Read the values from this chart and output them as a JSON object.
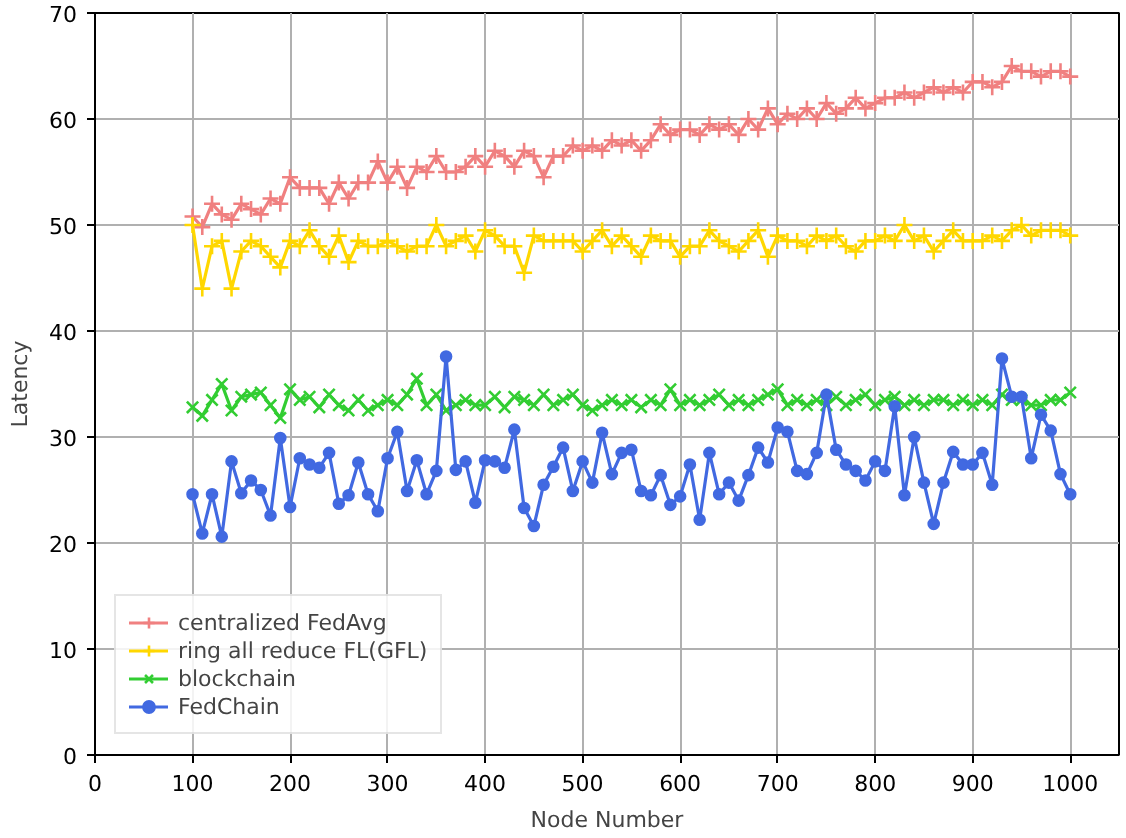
{
  "chart_data": {
    "type": "line",
    "xlabel": "Node Number",
    "ylabel": "Latency",
    "x": [
      100,
      110,
      120,
      130,
      140,
      150,
      160,
      170,
      180,
      190,
      200,
      210,
      220,
      230,
      240,
      250,
      260,
      270,
      280,
      290,
      300,
      310,
      320,
      330,
      340,
      350,
      360,
      370,
      380,
      390,
      400,
      410,
      420,
      430,
      440,
      450,
      460,
      470,
      480,
      490,
      500,
      510,
      520,
      530,
      540,
      550,
      560,
      570,
      580,
      590,
      600,
      610,
      620,
      630,
      640,
      650,
      660,
      670,
      680,
      690,
      700,
      710,
      720,
      730,
      740,
      750,
      760,
      770,
      780,
      790,
      800,
      810,
      820,
      830,
      840,
      850,
      860,
      870,
      880,
      890,
      900,
      910,
      920,
      930,
      940,
      950,
      960,
      970,
      980,
      990,
      1000
    ],
    "xlim": [
      0,
      1050
    ],
    "ylim": [
      0,
      70
    ],
    "xticks": [
      0,
      100,
      200,
      300,
      400,
      500,
      600,
      700,
      800,
      900,
      1000
    ],
    "yticks": [
      0,
      10,
      20,
      30,
      40,
      50,
      60,
      70
    ],
    "grid": true,
    "legend": "bottom left",
    "line_style": "solid",
    "series": [
      {
        "name": "centralized FedAvg",
        "color": "#f08080",
        "marker": "cross",
        "values": [
          50.8,
          49.8,
          52.0,
          51.0,
          50.5,
          52.0,
          51.5,
          51.0,
          52.5,
          52.0,
          54.5,
          53.5,
          53.5,
          53.5,
          52.0,
          54.0,
          52.5,
          54.0,
          54.0,
          56.0,
          54.0,
          55.5,
          53.5,
          55.5,
          55.0,
          56.5,
          55.0,
          55.0,
          55.5,
          56.5,
          55.5,
          57.0,
          56.5,
          55.5,
          57.0,
          56.5,
          54.5,
          56.5,
          56.5,
          57.5,
          57.0,
          57.5,
          57.0,
          58.0,
          57.5,
          58.0,
          57.0,
          58.0,
          59.5,
          58.5,
          59.0,
          59.0,
          58.5,
          59.5,
          59.0,
          59.5,
          58.5,
          60.0,
          59.0,
          61.0,
          59.5,
          60.5,
          60.0,
          61.0,
          60.0,
          61.5,
          60.5,
          61.0,
          62.0,
          61.0,
          61.5,
          62.0,
          62.0,
          62.5,
          62.0,
          62.5,
          63.0,
          62.5,
          63.0,
          62.5,
          63.5,
          63.5,
          63.0,
          63.5,
          65.0,
          64.5,
          64.5,
          64.0,
          64.5,
          64.5,
          64.0
        ]
      },
      {
        "name": "ring all reduce FL(GFL)",
        "color": "#ffd700",
        "marker": "cross",
        "values": [
          50.0,
          44.0,
          48.0,
          48.5,
          44.0,
          47.5,
          48.5,
          48.0,
          47.0,
          46.0,
          48.5,
          48.0,
          49.5,
          48.0,
          47.0,
          49.0,
          46.5,
          48.5,
          48.0,
          48.0,
          48.5,
          48.0,
          47.5,
          48.0,
          48.0,
          50.0,
          48.0,
          48.5,
          49.0,
          47.5,
          49.5,
          49.0,
          48.0,
          48.0,
          45.5,
          49.0,
          48.5,
          48.5,
          48.5,
          48.5,
          47.5,
          48.5,
          49.5,
          48.0,
          49.0,
          48.0,
          47.0,
          49.0,
          48.5,
          48.5,
          47.0,
          48.0,
          48.0,
          49.5,
          48.5,
          48.0,
          47.5,
          48.5,
          49.5,
          47.0,
          49.0,
          48.5,
          48.5,
          48.0,
          49.0,
          48.5,
          49.0,
          48.0,
          47.5,
          48.5,
          48.5,
          49.0,
          48.5,
          50.0,
          48.5,
          49.0,
          47.5,
          48.5,
          49.5,
          48.5,
          48.5,
          48.5,
          49.0,
          48.5,
          49.5,
          50.0,
          49.0,
          49.5,
          49.5,
          49.5,
          49.0
        ]
      },
      {
        "name": "blockchain",
        "color": "#32cd32",
        "marker": "x",
        "values": [
          32.8,
          32.0,
          33.5,
          35.0,
          32.5,
          33.8,
          34.0,
          34.2,
          33.0,
          31.8,
          34.5,
          33.5,
          33.8,
          32.8,
          34.0,
          33.0,
          32.5,
          33.5,
          32.5,
          33.0,
          33.5,
          33.0,
          34.0,
          35.5,
          33.0,
          34.0,
          32.5,
          33.0,
          33.5,
          33.0,
          33.0,
          33.8,
          32.8,
          33.8,
          33.5,
          33.0,
          34.0,
          33.0,
          33.5,
          34.0,
          33.0,
          32.5,
          33.0,
          33.5,
          33.0,
          33.5,
          32.8,
          33.5,
          33.0,
          34.5,
          33.0,
          33.5,
          33.0,
          33.5,
          34.0,
          33.0,
          33.5,
          33.0,
          33.5,
          34.0,
          34.5,
          33.0,
          33.5,
          33.0,
          33.5,
          33.0,
          33.8,
          33.0,
          33.5,
          34.0,
          33.0,
          33.5,
          33.8,
          33.0,
          33.5,
          33.0,
          33.5,
          33.5,
          33.0,
          33.5,
          33.0,
          33.5,
          33.0,
          34.0,
          33.5,
          33.5,
          33.0,
          33.0,
          33.5,
          33.5,
          34.2
        ]
      },
      {
        "name": "FedChain",
        "color": "#4169e1",
        "marker": "circle",
        "values": [
          24.6,
          20.9,
          24.6,
          20.6,
          27.7,
          24.7,
          25.9,
          25.0,
          22.6,
          29.9,
          23.4,
          28.0,
          27.4,
          27.1,
          28.5,
          23.7,
          24.5,
          27.6,
          24.6,
          23.0,
          28.0,
          30.5,
          24.9,
          27.8,
          24.6,
          26.8,
          37.6,
          26.9,
          27.7,
          23.8,
          27.8,
          27.7,
          27.1,
          30.7,
          23.3,
          21.6,
          25.5,
          27.2,
          29.0,
          24.9,
          27.7,
          25.7,
          30.4,
          26.5,
          28.5,
          28.8,
          24.9,
          24.5,
          26.4,
          23.6,
          24.4,
          27.4,
          22.2,
          28.5,
          24.6,
          25.7,
          24.0,
          26.4,
          29.0,
          27.6,
          30.9,
          30.5,
          26.8,
          26.5,
          28.5,
          34.0,
          28.8,
          27.4,
          26.8,
          25.9,
          27.7,
          26.8,
          32.9,
          24.5,
          30.0,
          25.7,
          21.8,
          25.7,
          28.6,
          27.4,
          27.4,
          28.5,
          25.5,
          37.4,
          33.8,
          33.8,
          28.0,
          32.1,
          30.6,
          26.5,
          24.6
        ]
      }
    ]
  }
}
